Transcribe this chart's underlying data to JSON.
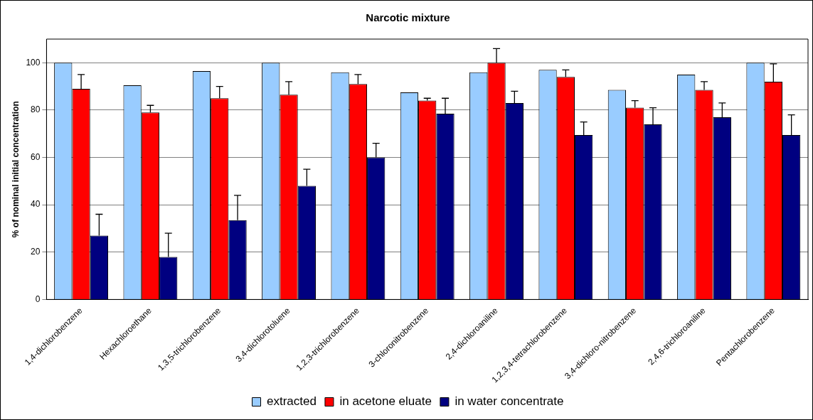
{
  "chart_data": {
    "type": "bar",
    "title": "Narcotic mixture",
    "ylabel": "% of nominal initial concentration",
    "categories": [
      "1,4-dichlorobenzene",
      "Hexachloroethane",
      "1,3,5-trichlorobenzene",
      "3,4-dichlorotoluene",
      "1,2,3-trichlorobenzene",
      "3-chloronitrobenzene",
      "2,4-dichloroaniline",
      "1,2,3,4-tetrachlorobenzene",
      "3,4-dichloro-nitrobenzene",
      "2,4,6-trichloroaniline",
      "Pentachlorobenzene"
    ],
    "series": [
      {
        "name": "extracted",
        "color": "#99ccff",
        "values": [
          100,
          90.5,
          96.5,
          100,
          96,
          87.5,
          96,
          97,
          88.5,
          95,
          100
        ]
      },
      {
        "name": "in acetone eluate",
        "color": "#ff0000",
        "values": [
          89,
          79,
          85,
          86.5,
          91,
          84,
          100,
          94,
          81,
          88.5,
          92
        ],
        "errors": [
          [
            89,
            95
          ],
          [
            79,
            82
          ],
          [
            85,
            90
          ],
          [
            86.5,
            92
          ],
          [
            91,
            95
          ],
          [
            84,
            85
          ],
          [
            100,
            106
          ],
          [
            94,
            97
          ],
          [
            81,
            84
          ],
          [
            88.5,
            92
          ],
          [
            92,
            99.5
          ]
        ]
      },
      {
        "name": "in water concentrate",
        "color": "#000080",
        "values": [
          27,
          18,
          33.5,
          48,
          60,
          78.5,
          83,
          69.5,
          74,
          77,
          69.5
        ],
        "errors": [
          [
            27,
            36
          ],
          [
            18,
            28
          ],
          [
            33.5,
            44
          ],
          [
            48,
            55
          ],
          [
            60,
            66
          ],
          [
            78.5,
            85
          ],
          [
            83,
            88
          ],
          [
            69.5,
            75
          ],
          [
            74,
            81
          ],
          [
            77,
            83
          ],
          [
            69.5,
            78
          ]
        ]
      }
    ],
    "ylim": [
      0,
      110
    ],
    "yticks": [
      0,
      20,
      40,
      60,
      80,
      100
    ],
    "grid": "y",
    "legend": "bottom"
  }
}
